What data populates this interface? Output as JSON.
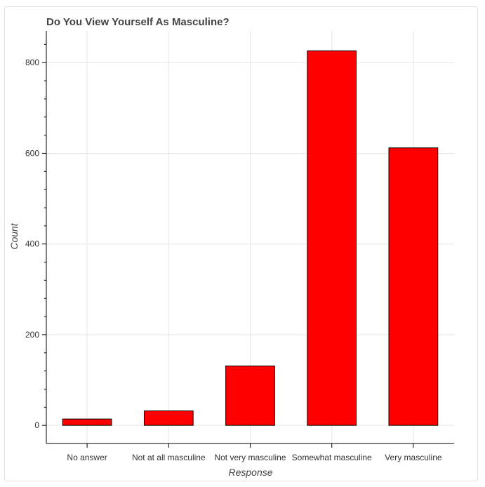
{
  "chart_data": {
    "type": "bar",
    "title": "Do You View Yourself As Masculine?",
    "xlabel": "Response",
    "ylabel": "Count",
    "categories": [
      "No answer",
      "Not at all masculine",
      "Not very masculine",
      "Somewhat masculine",
      "Very masculine"
    ],
    "values": [
      14,
      32,
      131,
      826,
      612
    ],
    "ylim": [
      -40,
      870
    ],
    "yticks": [
      0,
      200,
      400,
      600,
      800
    ],
    "grid": true,
    "colors": {
      "bar_fill": "#ff0000",
      "bar_stroke": "#000000"
    }
  }
}
